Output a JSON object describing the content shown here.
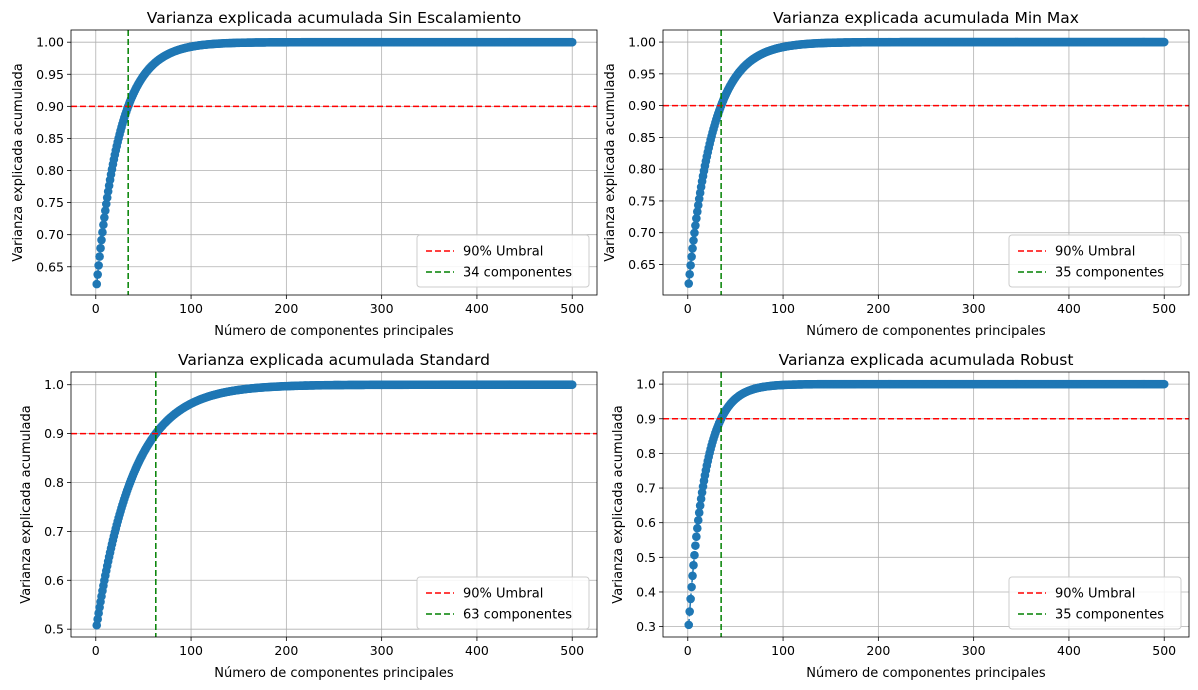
{
  "colors": {
    "series": "#1f77b4",
    "threshold": "#ff0000",
    "components": "#008000",
    "grid": "#b0b0b0"
  },
  "chart_data": [
    {
      "type": "line",
      "title": "Varianza explicada acumulada Sin Escalamiento",
      "xlabel": "Número de componentes principales",
      "ylabel": "Varianza explicada acumulada",
      "xlim": [
        -26,
        526
      ],
      "ylim": [
        0.606,
        1.019
      ],
      "xticks": [
        0,
        100,
        200,
        300,
        400,
        500
      ],
      "yticks": [
        0.65,
        0.7,
        0.75,
        0.8,
        0.85,
        0.9,
        0.95,
        1.0
      ],
      "ytick_labels": [
        "0.65",
        "0.70",
        "0.75",
        "0.80",
        "0.85",
        "0.90",
        "0.95",
        "1.00"
      ],
      "series": [
        {
          "x_start": 1,
          "x_end": 500,
          "first_value": 0.623,
          "n90": 34
        }
      ],
      "threshold": 0.9,
      "components": 34,
      "legend": [
        "90% Umbral",
        "34 componentes"
      ],
      "grid": true,
      "legend_position": "lower-right"
    },
    {
      "type": "line",
      "title": "Varianza explicada acumulada Min Max",
      "xlabel": "Número de componentes principales",
      "ylabel": "Varianza explicada acumulada",
      "xlim": [
        -26,
        526
      ],
      "ylim": [
        0.602,
        1.019
      ],
      "xticks": [
        0,
        100,
        200,
        300,
        400,
        500
      ],
      "yticks": [
        0.65,
        0.7,
        0.75,
        0.8,
        0.85,
        0.9,
        0.95,
        1.0
      ],
      "ytick_labels": [
        "0.65",
        "0.70",
        "0.75",
        "0.80",
        "0.85",
        "0.90",
        "0.95",
        "1.00"
      ],
      "series": [
        {
          "x_start": 1,
          "x_end": 500,
          "first_value": 0.62,
          "n90": 35
        }
      ],
      "threshold": 0.9,
      "components": 35,
      "legend": [
        "90% Umbral",
        "35 componentes"
      ],
      "grid": true,
      "legend_position": "lower-right"
    },
    {
      "type": "line",
      "title": "Varianza explicada acumulada Standard",
      "xlabel": "Número de componentes principales",
      "ylabel": "Varianza explicada acumulada",
      "xlim": [
        -26,
        526
      ],
      "ylim": [
        0.484,
        1.026
      ],
      "xticks": [
        0,
        100,
        200,
        300,
        400,
        500
      ],
      "yticks": [
        0.5,
        0.6,
        0.7,
        0.8,
        0.9,
        1.0
      ],
      "ytick_labels": [
        "0.5",
        "0.6",
        "0.7",
        "0.8",
        "0.9",
        "1.0"
      ],
      "series": [
        {
          "x_start": 1,
          "x_end": 500,
          "first_value": 0.508,
          "n90": 63
        }
      ],
      "threshold": 0.9,
      "components": 63,
      "legend": [
        "90% Umbral",
        "63 componentes"
      ],
      "grid": true,
      "legend_position": "lower-right"
    },
    {
      "type": "line",
      "title": "Varianza explicada acumulada Robust",
      "xlabel": "Número de componentes principales",
      "ylabel": "Varianza explicada acumulada",
      "xlim": [
        -26,
        526
      ],
      "ylim": [
        0.27,
        1.035
      ],
      "xticks": [
        0,
        100,
        200,
        300,
        400,
        500
      ],
      "yticks": [
        0.3,
        0.4,
        0.5,
        0.6,
        0.7,
        0.8,
        0.9,
        1.0
      ],
      "ytick_labels": [
        "0.3",
        "0.4",
        "0.5",
        "0.6",
        "0.7",
        "0.8",
        "0.9",
        "1.0"
      ],
      "series": [
        {
          "x_start": 1,
          "x_end": 500,
          "first_value": 0.305,
          "n90": 35
        }
      ],
      "threshold": 0.9,
      "components": 35,
      "legend": [
        "90% Umbral",
        "35 componentes"
      ],
      "grid": true,
      "legend_position": "lower-right"
    }
  ]
}
